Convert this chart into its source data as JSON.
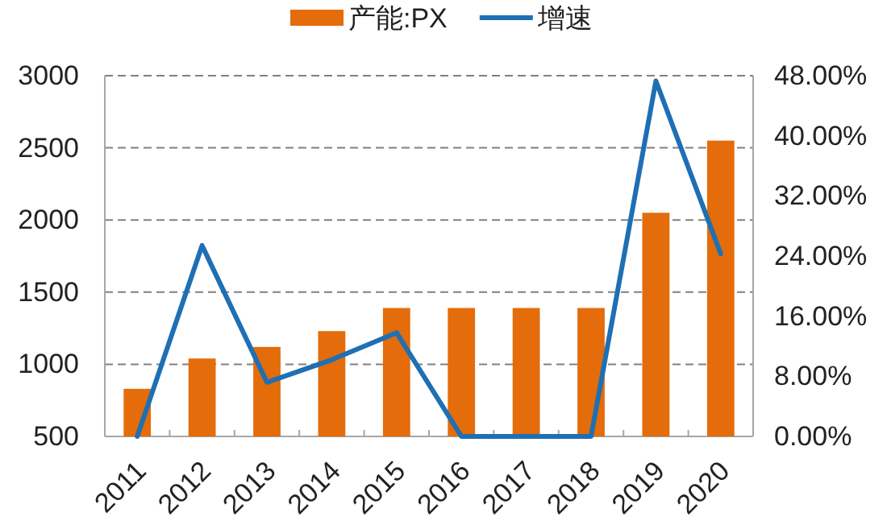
{
  "chart_data": {
    "type": "bar",
    "categories": [
      "2011",
      "2012",
      "2013",
      "2014",
      "2015",
      "2016",
      "2017",
      "2018",
      "2019",
      "2020"
    ],
    "series": [
      {
        "name": "产能:PX",
        "color": "#e46c0a",
        "values": [
          830,
          1040,
          1120,
          1230,
          1390,
          1390,
          1390,
          1390,
          2050,
          2550
        ]
      },
      {
        "name": "增速",
        "type": "line",
        "axis": "y2",
        "color": "#1f6fb4",
        "values": [
          0,
          25.4,
          7.2,
          10.2,
          13.8,
          0,
          0,
          0,
          47.3,
          24.3
        ]
      }
    ],
    "ylim": [
      500,
      3000
    ],
    "yticks": [
      500,
      1000,
      1500,
      2000,
      2500,
      3000
    ],
    "y2lim": [
      0,
      48
    ],
    "y2ticks": [
      {
        "value": 0,
        "label": "0.00%"
      },
      {
        "value": 8,
        "label": "8.00%"
      },
      {
        "value": 16,
        "label": "16.00%"
      },
      {
        "value": 24,
        "label": "24.00%"
      },
      {
        "value": 32,
        "label": "32.00%"
      },
      {
        "value": 40,
        "label": "40.00%"
      },
      {
        "value": 48,
        "label": "48.00%"
      }
    ],
    "grid": "y",
    "legend": "top"
  }
}
